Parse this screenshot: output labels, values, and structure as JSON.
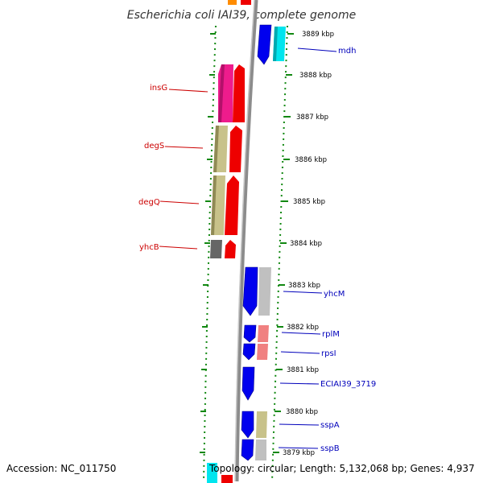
{
  "title": "Escherichia coli IAI39, complete genome",
  "footer": {
    "accession": "Accession: NC_011750",
    "topology": "Topology: circular; Length: 5,132,068 bp; Genes: 4,937"
  },
  "ticks": [
    "3889 kbp",
    "3888 kbp",
    "3887 kbp",
    "3886 kbp",
    "3885 kbp",
    "3884 kbp",
    "3883 kbp",
    "3882 kbp",
    "3881 kbp",
    "3880 kbp",
    "3879 kbp"
  ],
  "labels": {
    "insG": "insG",
    "degS": "degS",
    "degQ": "degQ",
    "yhcB": "yhcB",
    "mdh": "mdh",
    "yhcM": "yhcM",
    "rplM": "rplM",
    "rpsI": "rpsI",
    "ecia": "ECIAI39_3719",
    "sspA": "sspA",
    "sspB": "sspB"
  },
  "colors": {
    "reverse_label": "#cc0000",
    "forward_label": "#0000bb",
    "backbone": "#8c8c8c",
    "ruler": "#118811"
  }
}
